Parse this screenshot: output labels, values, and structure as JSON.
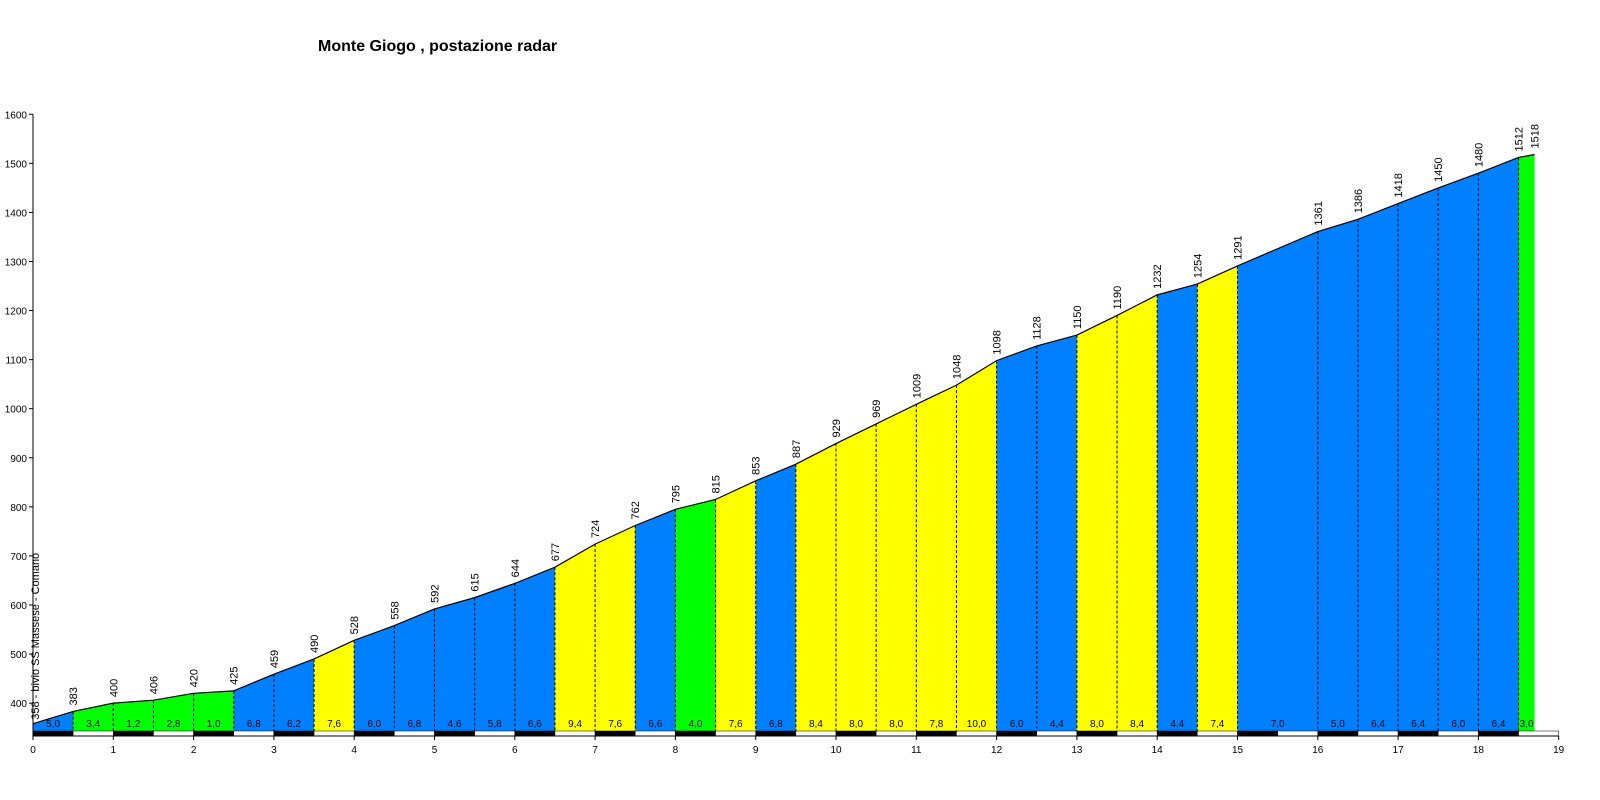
{
  "chart_data": {
    "type": "area",
    "title": "Monte Giogo , postazione radar",
    "xlabel": "",
    "ylabel": "",
    "xlim": [
      0,
      19
    ],
    "ylim": [
      333,
      1600
    ],
    "x_ticks": [
      0,
      1,
      2,
      3,
      4,
      5,
      6,
      7,
      8,
      9,
      10,
      11,
      12,
      13,
      14,
      15,
      16,
      17,
      18,
      19
    ],
    "y_ticks": [
      400,
      500,
      600,
      700,
      800,
      900,
      1000,
      1100,
      1200,
      1300,
      1400,
      1500,
      1600
    ],
    "start_label": "358 - bivio SS Massese - Comano",
    "points": [
      {
        "x": 0.0,
        "y": 358,
        "label": ""
      },
      {
        "x": 0.5,
        "y": 383,
        "label": "383"
      },
      {
        "x": 1.0,
        "y": 400,
        "label": "400"
      },
      {
        "x": 1.5,
        "y": 406,
        "label": "406"
      },
      {
        "x": 2.0,
        "y": 420,
        "label": "420"
      },
      {
        "x": 2.5,
        "y": 425,
        "label": "425"
      },
      {
        "x": 3.0,
        "y": 459,
        "label": "459"
      },
      {
        "x": 3.5,
        "y": 490,
        "label": "490"
      },
      {
        "x": 4.0,
        "y": 528,
        "label": "528"
      },
      {
        "x": 4.5,
        "y": 558,
        "label": "558"
      },
      {
        "x": 5.0,
        "y": 592,
        "label": "592"
      },
      {
        "x": 5.5,
        "y": 615,
        "label": "615"
      },
      {
        "x": 6.0,
        "y": 644,
        "label": "644"
      },
      {
        "x": 6.5,
        "y": 677,
        "label": "677"
      },
      {
        "x": 7.0,
        "y": 724,
        "label": "724"
      },
      {
        "x": 7.5,
        "y": 762,
        "label": "762"
      },
      {
        "x": 8.0,
        "y": 795,
        "label": "795"
      },
      {
        "x": 8.5,
        "y": 815,
        "label": "815"
      },
      {
        "x": 9.0,
        "y": 853,
        "label": "853"
      },
      {
        "x": 9.5,
        "y": 887,
        "label": "887"
      },
      {
        "x": 10.0,
        "y": 929,
        "label": "929"
      },
      {
        "x": 10.5,
        "y": 969,
        "label": "969"
      },
      {
        "x": 11.0,
        "y": 1009,
        "label": "1009"
      },
      {
        "x": 11.5,
        "y": 1048,
        "label": "1048"
      },
      {
        "x": 12.0,
        "y": 1098,
        "label": "1098"
      },
      {
        "x": 12.5,
        "y": 1128,
        "label": "1128"
      },
      {
        "x": 13.0,
        "y": 1150,
        "label": "1150"
      },
      {
        "x": 13.5,
        "y": 1190,
        "label": "1190"
      },
      {
        "x": 14.0,
        "y": 1232,
        "label": "1232"
      },
      {
        "x": 14.5,
        "y": 1254,
        "label": "1254"
      },
      {
        "x": 15.0,
        "y": 1291,
        "label": "1291"
      },
      {
        "x": 16.0,
        "y": 1361,
        "label": "1361"
      },
      {
        "x": 16.5,
        "y": 1386,
        "label": "1386"
      },
      {
        "x": 17.0,
        "y": 1418,
        "label": "1418"
      },
      {
        "x": 17.5,
        "y": 1450,
        "label": "1450"
      },
      {
        "x": 18.0,
        "y": 1480,
        "label": "1480"
      },
      {
        "x": 18.5,
        "y": 1512,
        "label": "1512"
      },
      {
        "x": 18.7,
        "y": 1518,
        "label": "1518"
      }
    ],
    "gradients": [
      "5,0",
      "3,4",
      "1,2",
      "2,8",
      "1,0",
      "6,8",
      "6,2",
      "7,6",
      "6,0",
      "6,8",
      "4,6",
      "5,8",
      "6,6",
      "9,4",
      "7,6",
      "6,6",
      "4,0",
      "7,6",
      "6,8",
      "8,4",
      "8,0",
      "8,0",
      "7,8",
      "10,0",
      "6,0",
      "4,4",
      "8,0",
      "8,4",
      "4,4",
      "7,4",
      "7,0",
      "5,0",
      "6,4",
      "6,4",
      "6,0",
      "6,4",
      "3,0"
    ],
    "segment_colors": [
      "blue",
      "green",
      "green",
      "green",
      "green",
      "blue",
      "blue",
      "yellow",
      "blue",
      "blue",
      "blue",
      "blue",
      "blue",
      "yellow",
      "yellow",
      "blue",
      "green",
      "yellow",
      "blue",
      "yellow",
      "yellow",
      "yellow",
      "yellow",
      "yellow",
      "blue",
      "blue",
      "yellow",
      "yellow",
      "blue",
      "yellow",
      "blue",
      "blue",
      "blue",
      "blue",
      "blue",
      "blue",
      "green"
    ],
    "colors": {
      "green": "#00ff00",
      "blue": "#0080ff",
      "yellow": "#ffff00"
    },
    "grid": false,
    "legend": "none"
  }
}
